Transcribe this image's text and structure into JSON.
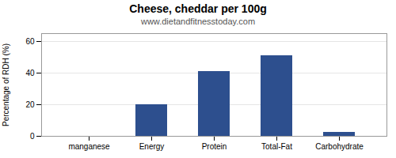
{
  "chart_data": {
    "type": "bar",
    "title": "Cheese, cheddar per 100g",
    "subtitle": "www.dietandfitnesstoday.com",
    "categories": [
      "manganese",
      "Energy",
      "Protein",
      "Total-Fat",
      "Carbohydrate"
    ],
    "values": [
      0,
      20,
      41,
      51,
      2.5
    ],
    "color": "#2d4f8e",
    "ylabel": "Percentage of RDH (%)",
    "ylim": [
      0,
      65
    ],
    "yticks": [
      0,
      20,
      40,
      60
    ],
    "grid": true
  }
}
